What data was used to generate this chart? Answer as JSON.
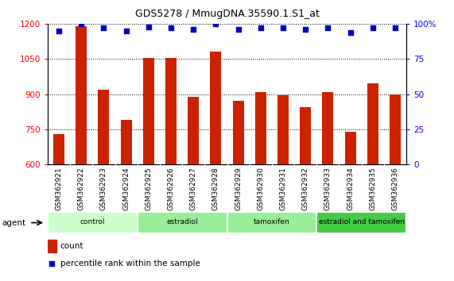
{
  "title": "GDS5278 / MmugDNA.35590.1.S1_at",
  "samples": [
    "GSM362921",
    "GSM362922",
    "GSM362923",
    "GSM362924",
    "GSM362925",
    "GSM362926",
    "GSM362927",
    "GSM362928",
    "GSM362929",
    "GSM362930",
    "GSM362931",
    "GSM362932",
    "GSM362933",
    "GSM362934",
    "GSM362935",
    "GSM362936"
  ],
  "counts": [
    730,
    1190,
    920,
    790,
    1055,
    1055,
    890,
    1080,
    870,
    910,
    895,
    845,
    910,
    740,
    945,
    900
  ],
  "percentile_ranks": [
    95,
    100,
    97,
    95,
    98,
    97,
    96,
    100,
    96,
    97,
    97,
    96,
    97,
    94,
    97,
    97
  ],
  "bar_color": "#cc2200",
  "dot_color": "#0000cc",
  "ylim_left": [
    600,
    1200
  ],
  "ylim_right": [
    0,
    100
  ],
  "yticks_left": [
    600,
    750,
    900,
    1050,
    1200
  ],
  "yticks_right": [
    0,
    25,
    50,
    75,
    100
  ],
  "groups": [
    {
      "label": "control",
      "start": 0,
      "end": 4,
      "color": "#ccffcc"
    },
    {
      "label": "estradiol",
      "start": 4,
      "end": 8,
      "color": "#99ee99"
    },
    {
      "label": "tamoxifen",
      "start": 8,
      "end": 12,
      "color": "#99ee99"
    },
    {
      "label": "estradiol and tamoxifen",
      "start": 12,
      "end": 16,
      "color": "#44cc44"
    }
  ],
  "agent_label": "agent",
  "legend_count_label": "count",
  "legend_pct_label": "percentile rank within the sample",
  "bar_bottom": 600,
  "tick_label_bg": "#c8c8c8",
  "right_pct_label": "%"
}
